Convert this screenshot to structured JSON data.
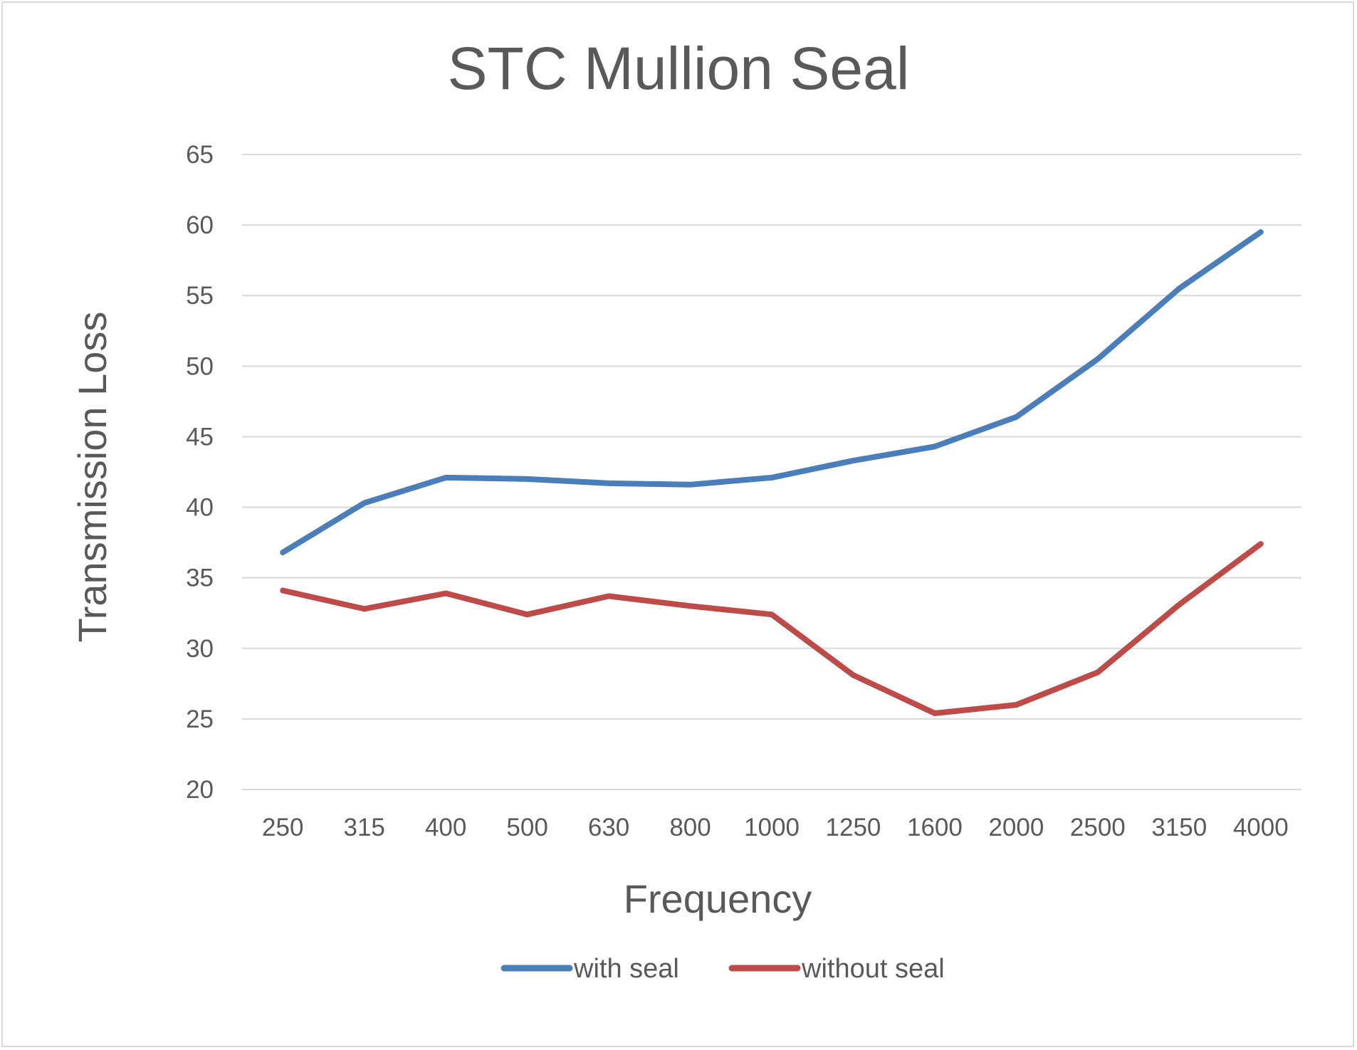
{
  "chart_data": {
    "type": "line",
    "title": "STC Mullion Seal",
    "xlabel": "Frequency",
    "ylabel": "Transmission Loss",
    "ylim": [
      20,
      65
    ],
    "yticks": [
      20,
      25,
      30,
      35,
      40,
      45,
      50,
      55,
      60,
      65
    ],
    "grid": true,
    "legend_position": "bottom",
    "categories": [
      "250",
      "315",
      "400",
      "500",
      "630",
      "800",
      "1000",
      "1250",
      "1600",
      "2000",
      "2500",
      "3150",
      "4000"
    ],
    "series": [
      {
        "name": "with seal",
        "color": "#4a7ebb",
        "values": [
          36.8,
          40.3,
          42.1,
          42.0,
          41.7,
          41.6,
          42.1,
          43.3,
          44.3,
          46.4,
          50.5,
          55.5,
          59.5
        ]
      },
      {
        "name": "without seal",
        "color": "#be4b48",
        "values": [
          34.1,
          32.8,
          33.9,
          32.4,
          33.7,
          33.0,
          32.4,
          28.1,
          25.4,
          26.0,
          28.3,
          33.1,
          37.4
        ]
      }
    ]
  }
}
